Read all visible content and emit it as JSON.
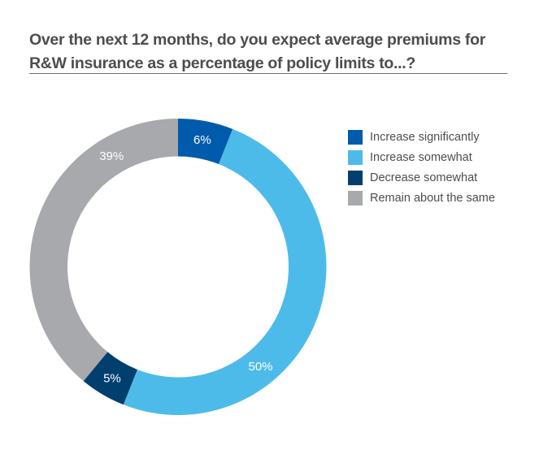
{
  "chart_data": {
    "type": "pie",
    "variant": "donut",
    "title": "Over the next 12 months, do you expect average premiums for R&W insurance as a percentage of policy limits to...?",
    "start": "top",
    "direction": "clockwise",
    "legend_position": "right",
    "slices": [
      {
        "name": "Increase significantly",
        "value": 6,
        "label": "6%",
        "color": "#005bac"
      },
      {
        "name": "Increase somewhat",
        "value": 50,
        "label": "50%",
        "color": "#4dbbea"
      },
      {
        "name": "Decrease somewhat",
        "value": 5,
        "label": "5%",
        "color": "#003f6e"
      },
      {
        "name": "Remain about the same",
        "value": 39,
        "label": "39%",
        "color": "#a7a9ac"
      }
    ]
  }
}
